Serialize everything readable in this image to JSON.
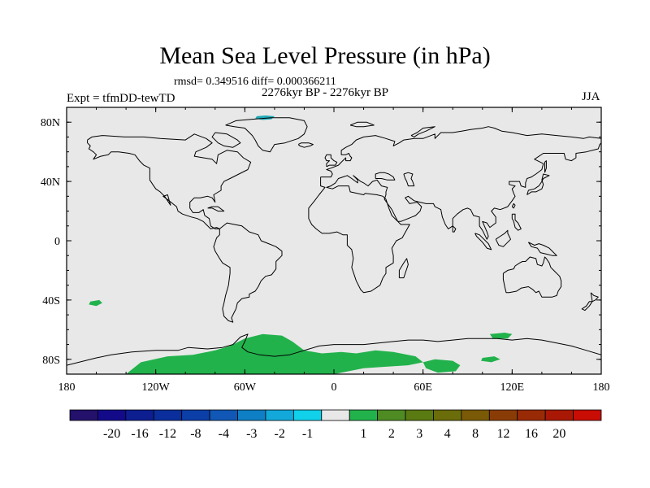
{
  "title": "Mean Sea Level Pressure (in hPa)",
  "stats": "rmsd= 0.349516 diff= 0.000366211",
  "period": "2276kyr BP - 2276kyr BP",
  "experiment": "Expt = tfmDD-tewTD",
  "season": "JJA",
  "chart_data": {
    "type": "heatmap",
    "map_projection": "cylindrical equidistant",
    "xlim": [
      -180,
      180
    ],
    "ylim": [
      -90,
      90
    ],
    "x_ticks": [
      {
        "value": -180,
        "label": "180"
      },
      {
        "value": -120,
        "label": "120W"
      },
      {
        "value": -60,
        "label": "60W"
      },
      {
        "value": 0,
        "label": "0"
      },
      {
        "value": 60,
        "label": "60E"
      },
      {
        "value": 120,
        "label": "120E"
      },
      {
        "value": 180,
        "label": "180"
      }
    ],
    "y_ticks": [
      {
        "value": 80,
        "label": "80N"
      },
      {
        "value": 40,
        "label": "40N"
      },
      {
        "value": 0,
        "label": "0"
      },
      {
        "value": -40,
        "label": "40S"
      },
      {
        "value": -80,
        "label": "80S"
      }
    ],
    "background_color": "#e8e8e8",
    "background_level": "-1 to 1",
    "anomaly_regions": [
      {
        "name": "Southern Ocean / Antarctic positive anomaly",
        "color": "#22b24c",
        "level": "1 to 2",
        "polygon": [
          [
            -140,
            -90
          ],
          [
            -130,
            -82
          ],
          [
            -112,
            -78
          ],
          [
            -95,
            -77
          ],
          [
            -80,
            -74
          ],
          [
            -70,
            -71
          ],
          [
            -60,
            -66
          ],
          [
            -48,
            -63
          ],
          [
            -35,
            -64
          ],
          [
            -28,
            -68
          ],
          [
            -20,
            -74
          ],
          [
            -8,
            -76
          ],
          [
            5,
            -75
          ],
          [
            15,
            -76
          ],
          [
            28,
            -74
          ],
          [
            40,
            -75
          ],
          [
            55,
            -78
          ],
          [
            60,
            -82
          ],
          [
            50,
            -84
          ],
          [
            35,
            -85
          ],
          [
            20,
            -86
          ],
          [
            10,
            -88
          ],
          [
            0,
            -90
          ]
        ]
      },
      {
        "name": "Southern Ocean patch near 72E",
        "color": "#22b24c",
        "level": "1 to 2",
        "polygon": [
          [
            60,
            -82
          ],
          [
            68,
            -80
          ],
          [
            80,
            -81
          ],
          [
            85,
            -84
          ],
          [
            82,
            -88
          ],
          [
            70,
            -89
          ],
          [
            62,
            -86
          ]
        ]
      },
      {
        "name": "Southern Ocean patch near 115E",
        "color": "#22b24c",
        "level": "1 to 2",
        "polygon": [
          [
            105,
            -63
          ],
          [
            115,
            -62
          ],
          [
            120,
            -63
          ],
          [
            117,
            -66
          ],
          [
            107,
            -66
          ]
        ]
      },
      {
        "name": "Antarctic coast patch near 105E",
        "color": "#22b24c",
        "level": "1 to 2",
        "polygon": [
          [
            100,
            -79
          ],
          [
            108,
            -78
          ],
          [
            112,
            -80
          ],
          [
            106,
            -82
          ],
          [
            99,
            -81
          ]
        ]
      },
      {
        "name": "South Pacific patch near 160W",
        "color": "#22b24c",
        "level": "1 to 2",
        "polygon": [
          [
            -164,
            -41
          ],
          [
            -158,
            -40
          ],
          [
            -156,
            -42
          ],
          [
            -160,
            -44
          ],
          [
            -165,
            -43
          ]
        ]
      },
      {
        "name": "Arctic patch north of Greenland",
        "color": "#1faab8",
        "level": "-2 to -1",
        "polygon": [
          [
            -52,
            84
          ],
          [
            -46,
            84.5
          ],
          [
            -40,
            84
          ],
          [
            -42,
            82
          ],
          [
            -48,
            81.5
          ],
          [
            -53,
            82.5
          ]
        ]
      }
    ],
    "colorbar": {
      "colors": [
        "#23116b",
        "#130a8a",
        "#0d1e91",
        "#0a2e9b",
        "#0c3ea8",
        "#1157b5",
        "#0e7fc4",
        "#12a8da",
        "#10d0ea",
        "#e8e8e8",
        "#22b24c",
        "#4e8b23",
        "#5a7a12",
        "#6b6c0a",
        "#7a5a06",
        "#8a3c07",
        "#992a06",
        "#a91804",
        "#c90c04"
      ],
      "labels": [
        "-20",
        "-16",
        "-12",
        "-8",
        "-4",
        "-3",
        "-2",
        "-1",
        "1",
        "2",
        "3",
        "4",
        "8",
        "12",
        "16",
        "20"
      ]
    }
  }
}
